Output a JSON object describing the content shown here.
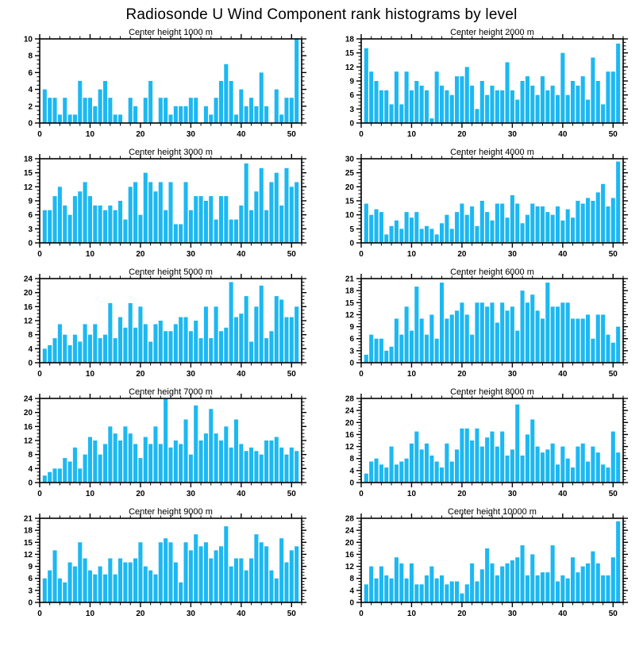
{
  "title": "Radiosonde U Wind Component rank histograms by level",
  "chart_data": {
    "type": "bar",
    "layout": "5 rows x 2 columns",
    "x_axis": {
      "xlim": [
        0,
        52
      ],
      "major_ticks": [
        0,
        10,
        20,
        30,
        40,
        50
      ],
      "minor_tick_step": 2,
      "bins_centered_at": "1..51"
    },
    "bar_color": "#1cb8f2",
    "axis_color": "#000000",
    "grid": "off",
    "legend": "none",
    "subplots": [
      {
        "title": "Center height 1000 m",
        "ylim": [
          0,
          10
        ],
        "ystep": 2,
        "values": [
          4,
          3,
          3,
          1,
          3,
          1,
          1,
          5,
          3,
          3,
          2,
          4,
          5,
          3,
          1,
          1,
          0,
          3,
          2,
          0,
          3,
          5,
          0,
          3,
          3,
          1,
          2,
          2,
          2,
          3,
          3,
          0,
          2,
          1,
          3,
          5,
          7,
          5,
          1,
          4,
          2,
          3,
          2,
          6,
          2,
          0,
          4,
          1,
          3,
          3,
          10
        ]
      },
      {
        "title": "Center height 2000 m",
        "ylim": [
          0,
          18
        ],
        "ystep": 3,
        "values": [
          16,
          11,
          9,
          7,
          7,
          4,
          11,
          4,
          11,
          7,
          9,
          8,
          7,
          1,
          11,
          8,
          7,
          6,
          10,
          10,
          12,
          8,
          3,
          9,
          6,
          8,
          7,
          7,
          13,
          7,
          5,
          9,
          10,
          8,
          6,
          10,
          7,
          8,
          6,
          15,
          6,
          9,
          8,
          10,
          5,
          14,
          9,
          4,
          11,
          11,
          17
        ]
      },
      {
        "title": "Center height 3000 m",
        "ylim": [
          0,
          18
        ],
        "ystep": 3,
        "values": [
          7,
          7,
          10,
          12,
          8,
          6,
          10,
          11,
          13,
          10,
          8,
          8,
          7,
          8,
          7,
          9,
          5,
          12,
          13,
          6,
          15,
          13,
          11,
          13,
          7,
          13,
          4,
          4,
          13,
          7,
          10,
          10,
          9,
          10,
          5,
          10,
          10,
          5,
          5,
          8,
          17,
          7,
          11,
          16,
          7,
          13,
          15,
          8,
          16,
          12,
          13
        ]
      },
      {
        "title": "Center height 4000 m",
        "ylim": [
          0,
          30
        ],
        "ystep": 5,
        "values": [
          14,
          10,
          12,
          11,
          3,
          6,
          8,
          5,
          11,
          9,
          11,
          5,
          6,
          5,
          3,
          7,
          10,
          5,
          11,
          14,
          10,
          13,
          6,
          15,
          11,
          8,
          14,
          14,
          9,
          17,
          14,
          7,
          10,
          14,
          13,
          13,
          11,
          10,
          13,
          8,
          12,
          9,
          15,
          14,
          16,
          15,
          18,
          21,
          13,
          16,
          29
        ]
      },
      {
        "title": "Center height 5000 m",
        "ylim": [
          0,
          24
        ],
        "ystep": 4,
        "values": [
          4,
          5,
          7,
          11,
          8,
          5,
          8,
          6,
          11,
          8,
          11,
          7,
          8,
          17,
          7,
          13,
          10,
          17,
          10,
          16,
          11,
          6,
          11,
          12,
          9,
          9,
          11,
          13,
          13,
          9,
          12,
          7,
          16,
          7,
          16,
          9,
          10,
          23,
          13,
          14,
          19,
          6,
          16,
          22,
          7,
          9,
          19,
          18,
          13,
          13,
          16
        ]
      },
      {
        "title": "Center height 6000 m",
        "ylim": [
          0,
          21
        ],
        "ystep": 3,
        "values": [
          2,
          7,
          6,
          6,
          3,
          4,
          11,
          7,
          14,
          8,
          19,
          11,
          7,
          12,
          6,
          20,
          11,
          12,
          13,
          15,
          12,
          7,
          15,
          15,
          14,
          15,
          10,
          15,
          13,
          14,
          8,
          18,
          15,
          17,
          13,
          11,
          20,
          14,
          14,
          15,
          15,
          11,
          11,
          11,
          12,
          6,
          12,
          12,
          7,
          5,
          9
        ]
      },
      {
        "title": "Center height 7000 m",
        "ylim": [
          0,
          24
        ],
        "ystep": 4,
        "values": [
          2,
          3,
          4,
          4,
          7,
          6,
          10,
          4,
          8,
          13,
          12,
          8,
          11,
          16,
          14,
          12,
          16,
          14,
          11,
          7,
          13,
          11,
          16,
          11,
          24,
          10,
          12,
          11,
          18,
          8,
          22,
          12,
          14,
          21,
          14,
          12,
          16,
          10,
          18,
          11,
          9,
          10,
          9,
          8,
          12,
          12,
          13,
          10,
          8,
          10,
          9
        ]
      },
      {
        "title": "Center height 8000 m",
        "ylim": [
          0,
          28
        ],
        "ystep": 4,
        "values": [
          3,
          7,
          8,
          6,
          5,
          12,
          6,
          7,
          8,
          13,
          17,
          11,
          13,
          9,
          7,
          5,
          13,
          7,
          11,
          18,
          18,
          14,
          18,
          12,
          15,
          17,
          12,
          17,
          9,
          11,
          26,
          9,
          16,
          21,
          12,
          10,
          11,
          13,
          6,
          12,
          8,
          5,
          12,
          13,
          7,
          12,
          10,
          6,
          5,
          17,
          10
        ]
      },
      {
        "title": "Center height 9000 m",
        "ylim": [
          0,
          21
        ],
        "ystep": 3,
        "values": [
          6,
          8,
          13,
          6,
          5,
          10,
          9,
          15,
          11,
          8,
          7,
          9,
          7,
          11,
          7,
          11,
          10,
          10,
          11,
          15,
          9,
          8,
          7,
          15,
          16,
          15,
          10,
          5,
          15,
          13,
          17,
          14,
          15,
          11,
          13,
          14,
          19,
          9,
          11,
          11,
          8,
          11,
          17,
          15,
          14,
          8,
          6,
          16,
          10,
          13,
          14
        ]
      },
      {
        "title": "Center height 10000 m",
        "ylim": [
          0,
          28
        ],
        "ystep": 4,
        "values": [
          6,
          12,
          8,
          12,
          9,
          8,
          15,
          13,
          8,
          13,
          6,
          6,
          9,
          12,
          8,
          9,
          6,
          7,
          7,
          3,
          6,
          13,
          7,
          11,
          18,
          13,
          9,
          12,
          13,
          14,
          15,
          19,
          9,
          16,
          9,
          10,
          10,
          19,
          7,
          9,
          8,
          15,
          10,
          12,
          13,
          17,
          13,
          9,
          9,
          15,
          27
        ]
      }
    ]
  }
}
